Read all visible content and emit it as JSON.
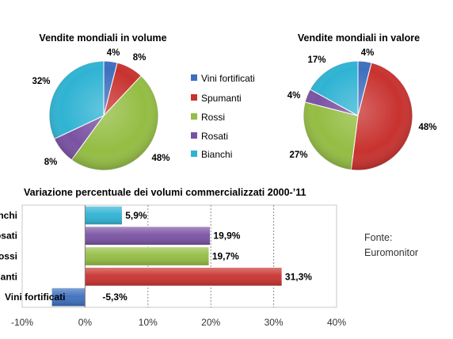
{
  "source_note": [
    "Fonte:",
    "Euromonitor"
  ],
  "chart_data": [
    {
      "type": "pie",
      "title": "Vendite mondiali in volume",
      "categories": [
        "Vini fortificati",
        "Spumanti",
        "Rossi",
        "Rosati",
        "Bianchi"
      ],
      "values": [
        4,
        8,
        48,
        8,
        32
      ],
      "labels": [
        "4%",
        "8%",
        "48%",
        "8%",
        "32%"
      ],
      "colors": [
        "#3d6fbe",
        "#c8322f",
        "#94bd43",
        "#7a52a3",
        "#2fb3d3"
      ],
      "legend": "right"
    },
    {
      "type": "pie",
      "title": "Vendite mondiali in valore",
      "categories": [
        "Vini fortificati",
        "Spumanti",
        "Rossi",
        "Rosati",
        "Bianchi"
      ],
      "values": [
        4,
        48,
        27,
        4,
        17
      ],
      "labels": [
        "4%",
        "48%",
        "27%",
        "4%",
        "17%"
      ],
      "colors": [
        "#3d6fbe",
        "#c8322f",
        "#94bd43",
        "#7a52a3",
        "#2fb3d3"
      ]
    },
    {
      "type": "bar",
      "orientation": "horizontal",
      "title": "Variazione percentuale dei volumi commercializzati 2000-’11",
      "categories": [
        "Bianchi",
        "Rosati",
        "Rossi",
        "Spumanti",
        "Vini fortificati"
      ],
      "values": [
        5.9,
        19.9,
        19.7,
        31.3,
        -5.3
      ],
      "data_labels": [
        "5,9%",
        "19,9%",
        "19,7%",
        "31,3%",
        "-5,3%"
      ],
      "colors": [
        "#2fb3d3",
        "#7a52a3",
        "#94bd43",
        "#c8322f",
        "#3d6fbe"
      ],
      "xlim": [
        -10,
        40
      ],
      "xticks": [
        "-10%",
        "0%",
        "10%",
        "20%",
        "30%",
        "40%"
      ],
      "grid": true
    }
  ]
}
